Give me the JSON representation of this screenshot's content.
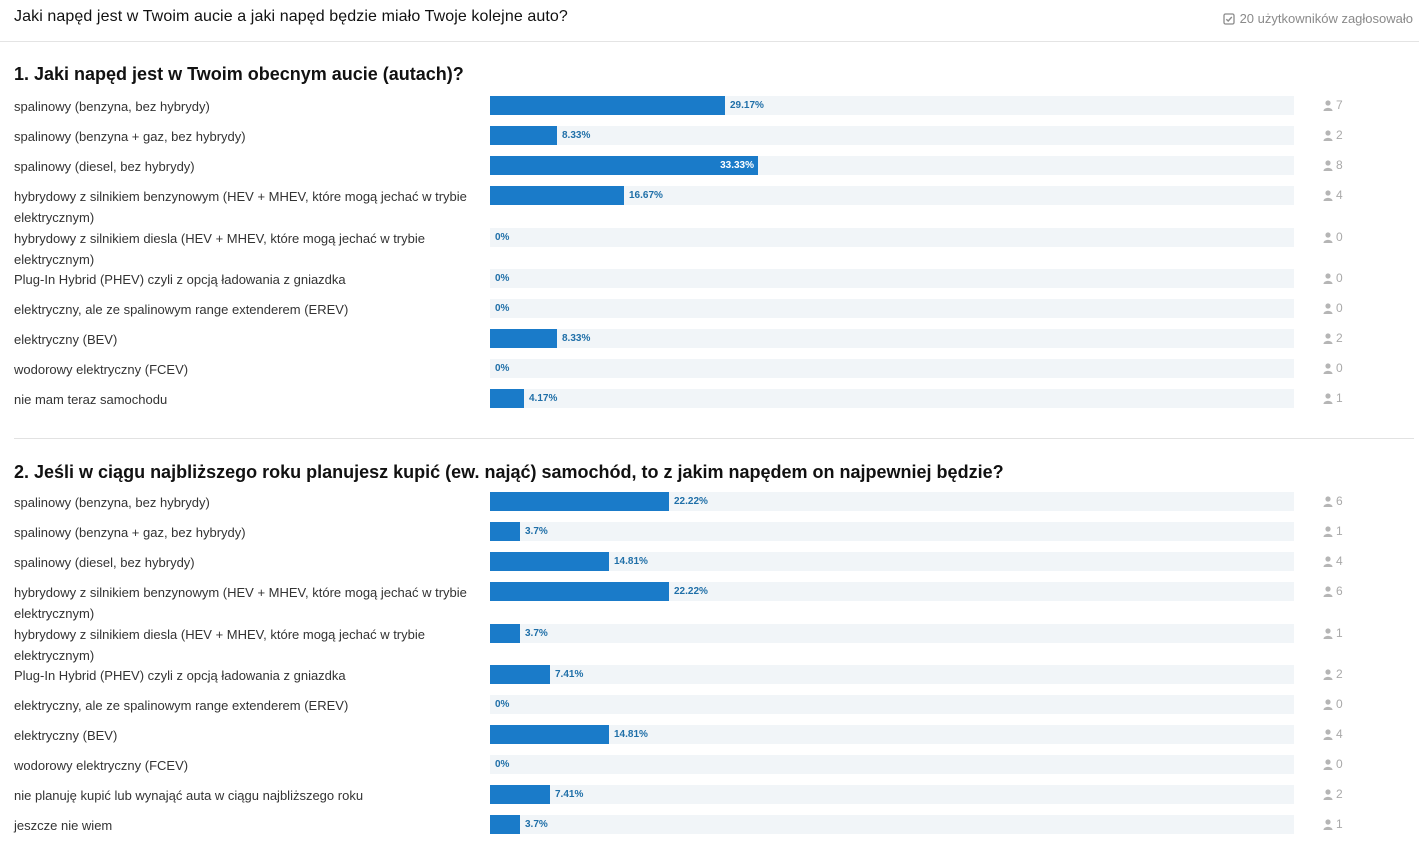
{
  "header": {
    "title": "Jaki napęd jest w Twoim aucie a jaki napęd będzie miało Twoje kolejne auto?",
    "voters_text": "20 użytkowników zagłosowało"
  },
  "questions": [
    {
      "title": "1. Jaki napęd jest w Twoim obecnym aucie (autach)?",
      "options": [
        {
          "label": "spalinowy (benzyna, bez hybrydy)",
          "percent": 29.17,
          "percent_text": "29.17%",
          "count": "7"
        },
        {
          "label": "spalinowy (benzyna + gaz, bez hybrydy)",
          "percent": 8.33,
          "percent_text": "8.33%",
          "count": "2"
        },
        {
          "label": "spalinowy (diesel, bez hybrydy)",
          "percent": 33.33,
          "percent_text": "33.33%",
          "count": "8"
        },
        {
          "label": "hybrydowy z silnikiem benzynowym (HEV + MHEV, które mogą jechać w trybie elektrycznym)",
          "percent": 16.67,
          "percent_text": "16.67%",
          "count": "4"
        },
        {
          "label": "hybrydowy z silnikiem diesla (HEV + MHEV, które mogą jechać w trybie elektrycznym)",
          "percent": 0,
          "percent_text": "0%",
          "count": "0"
        },
        {
          "label": "Plug-In Hybrid (PHEV) czyli z opcją ładowania z gniazdka",
          "percent": 0,
          "percent_text": "0%",
          "count": "0"
        },
        {
          "label": "elektryczny, ale ze spalinowym range extenderem (EREV)",
          "percent": 0,
          "percent_text": "0%",
          "count": "0"
        },
        {
          "label": "elektryczny (BEV)",
          "percent": 8.33,
          "percent_text": "8.33%",
          "count": "2"
        },
        {
          "label": "wodorowy elektryczny (FCEV)",
          "percent": 0,
          "percent_text": "0%",
          "count": "0"
        },
        {
          "label": "nie mam teraz samochodu",
          "percent": 4.17,
          "percent_text": "4.17%",
          "count": "1"
        }
      ]
    },
    {
      "title": "2. Jeśli w ciągu najbliższego roku planujesz kupić (ew. nająć) samochód, to z jakim napędem on najpewniej będzie?",
      "options": [
        {
          "label": "spalinowy (benzyna, bez hybrydy)",
          "percent": 22.22,
          "percent_text": "22.22%",
          "count": "6"
        },
        {
          "label": "spalinowy (benzyna + gaz, bez hybrydy)",
          "percent": 3.7,
          "percent_text": "3.7%",
          "count": "1"
        },
        {
          "label": "spalinowy (diesel, bez hybrydy)",
          "percent": 14.81,
          "percent_text": "14.81%",
          "count": "4"
        },
        {
          "label": "hybrydowy z silnikiem benzynowym (HEV + MHEV, które mogą jechać w trybie elektrycznym)",
          "percent": 22.22,
          "percent_text": "22.22%",
          "count": "6"
        },
        {
          "label": "hybrydowy z silnikiem diesla (HEV + MHEV, które mogą jechać w trybie elektrycznym)",
          "percent": 3.7,
          "percent_text": "3.7%",
          "count": "1"
        },
        {
          "label": "Plug-In Hybrid (PHEV) czyli z opcją ładowania z gniazdka",
          "percent": 7.41,
          "percent_text": "7.41%",
          "count": "2"
        },
        {
          "label": "elektryczny, ale ze spalinowym range extenderem (EREV)",
          "percent": 0,
          "percent_text": "0%",
          "count": "0"
        },
        {
          "label": "elektryczny (BEV)",
          "percent": 14.81,
          "percent_text": "14.81%",
          "count": "4"
        },
        {
          "label": "wodorowy elektryczny (FCEV)",
          "percent": 0,
          "percent_text": "0%",
          "count": "0"
        },
        {
          "label": "nie planuję kupić lub wynająć auta w ciągu najbliższego roku",
          "percent": 7.41,
          "percent_text": "7.41%",
          "count": "2"
        },
        {
          "label": "jeszcze nie wiem",
          "percent": 3.7,
          "percent_text": "3.7%",
          "count": "1"
        }
      ]
    }
  ],
  "colors": {
    "bar": "#1a7bc9",
    "track": "#f1f5f8",
    "percent_text": "#1f6fa8"
  }
}
